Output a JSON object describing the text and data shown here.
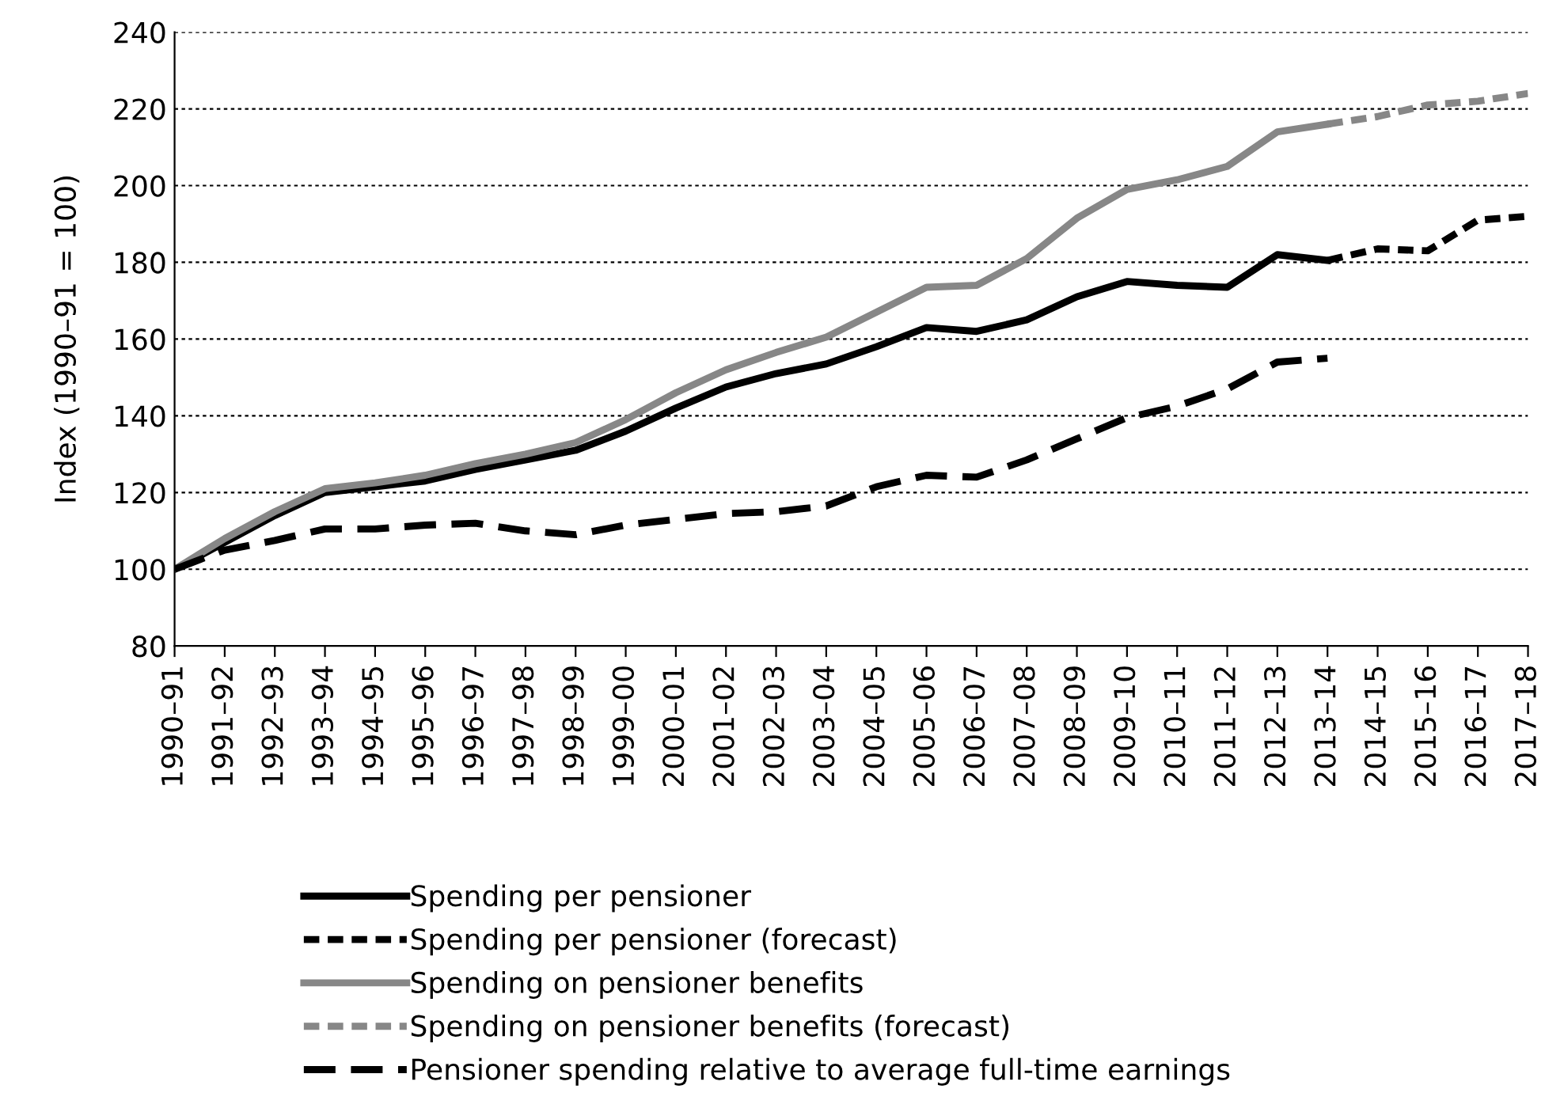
{
  "chart_data": {
    "type": "line",
    "ylabel": "Index (1990–91 = 100)",
    "categories": [
      "1990–91",
      "1991–92",
      "1992–93",
      "1993–94",
      "1994–95",
      "1995–96",
      "1996–97",
      "1997–98",
      "1998–99",
      "1999–00",
      "2000–01",
      "2001–02",
      "2002–03",
      "2003–04",
      "2004–05",
      "2005–06",
      "2006–07",
      "2007–08",
      "2008–09",
      "2009–10",
      "2010–11",
      "2011–12",
      "2012–13",
      "2013–14",
      "2014–15",
      "2015–16",
      "2016–17",
      "2017–18"
    ],
    "series": [
      {
        "name": "Spending per pensioner",
        "color": "#000000",
        "line_style": "solid",
        "values": [
          100,
          107,
          114,
          120,
          121.5,
          123,
          126,
          128.5,
          131,
          136,
          142,
          147.5,
          151,
          153.5,
          158,
          163,
          162,
          165,
          171,
          175,
          174,
          173.5,
          182,
          180.5,
          null,
          null,
          null,
          null
        ]
      },
      {
        "name": "Spending per pensioner (forecast)",
        "color": "#000000",
        "line_style": "dotted",
        "values": [
          null,
          null,
          null,
          null,
          null,
          null,
          null,
          null,
          null,
          null,
          null,
          null,
          null,
          null,
          null,
          null,
          null,
          null,
          null,
          null,
          null,
          null,
          null,
          180.5,
          183.5,
          183,
          191,
          192
        ]
      },
      {
        "name": "Spending on pensioner benefits",
        "color": "#878787",
        "line_style": "solid",
        "values": [
          100,
          108,
          115,
          121,
          122.5,
          124.5,
          127.5,
          130,
          133,
          139,
          146,
          152,
          156.5,
          160.5,
          167,
          173.5,
          174,
          181,
          191.5,
          199,
          201.5,
          205,
          214,
          216,
          null,
          null,
          null,
          null
        ]
      },
      {
        "name": "Spending on pensioner benefits (forecast)",
        "color": "#878787",
        "line_style": "dotted",
        "values": [
          null,
          null,
          null,
          null,
          null,
          null,
          null,
          null,
          null,
          null,
          null,
          null,
          null,
          null,
          null,
          null,
          null,
          null,
          null,
          null,
          null,
          null,
          null,
          216,
          218,
          221,
          222,
          224
        ]
      },
      {
        "name": "Pensioner spending relative to average full-time earnings",
        "color": "#000000",
        "line_style": "dashed",
        "values": [
          100,
          105,
          107.5,
          110.5,
          110.5,
          111.5,
          112,
          110,
          109,
          111.5,
          113,
          114.5,
          115,
          116.5,
          121.5,
          124.5,
          124,
          128.5,
          134,
          139.5,
          142.5,
          147,
          154,
          155,
          null,
          null,
          null,
          null
        ]
      }
    ],
    "ylim": [
      80,
      240
    ],
    "yticks": [
      80,
      100,
      120,
      140,
      160,
      180,
      200,
      220,
      240
    ],
    "grid": "y",
    "legend": "bottom",
    "marker": "none"
  }
}
